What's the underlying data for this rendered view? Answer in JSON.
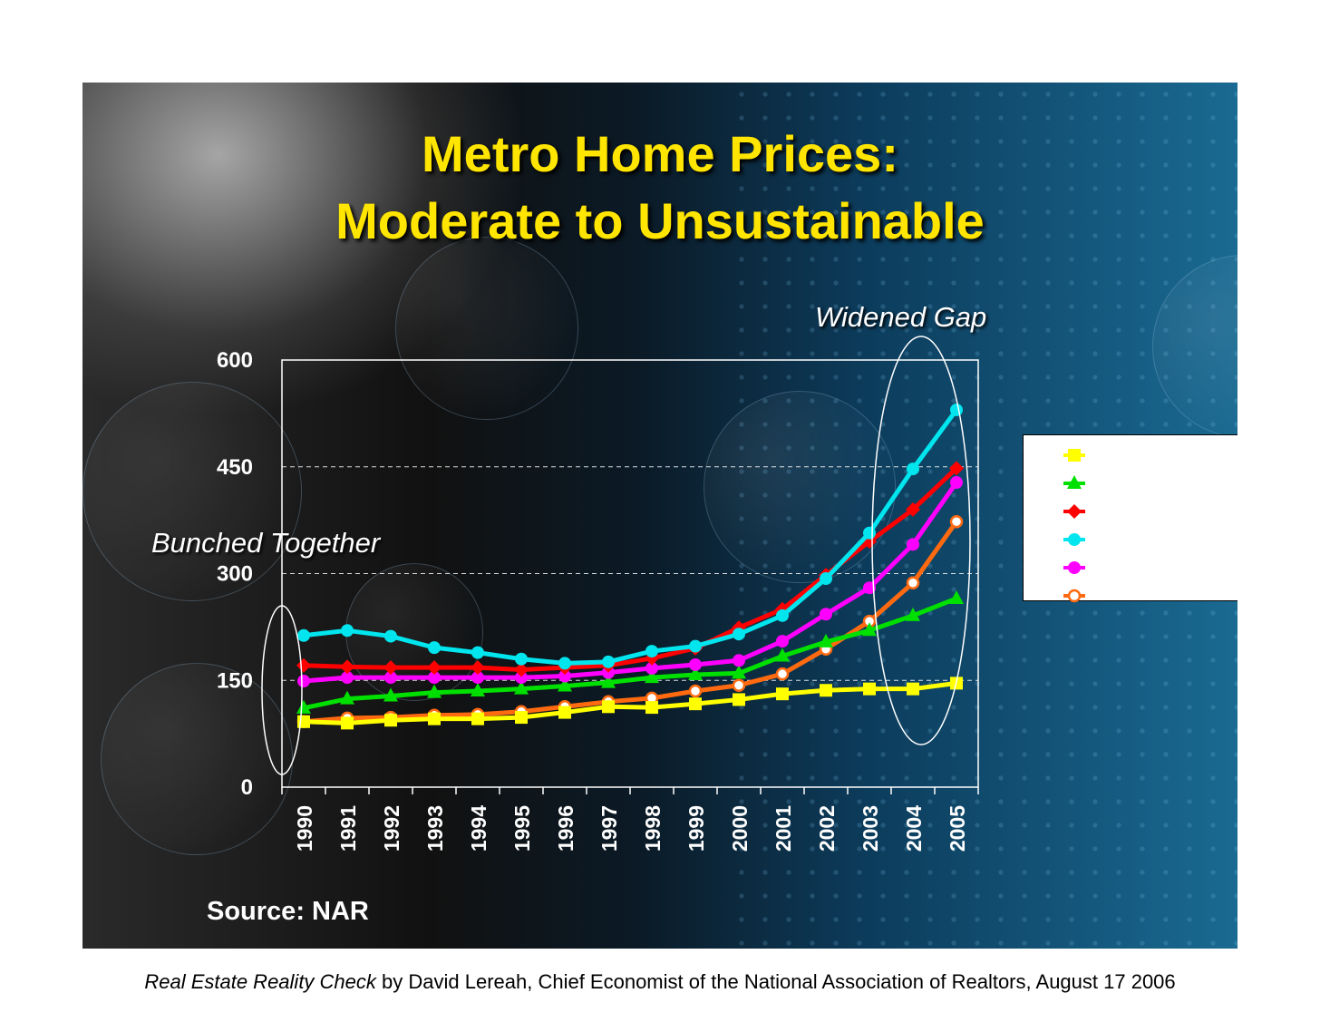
{
  "slide": {
    "title_line1": "Metro Home Prices:",
    "title_line2": "Moderate to Unsustainable",
    "annotation_left": "Bunched Together",
    "annotation_right": "Widened Gap",
    "source": "Source: NAR",
    "colors": {
      "title": "#ffe500",
      "background_left": "#111111",
      "background_right": "#1a6a92"
    }
  },
  "caption": {
    "italic": "Real Estate Reality Check",
    "rest": " by David Lereah, Chief Economist of the National Association of Realtors, August 17 2006"
  },
  "chart_data": {
    "type": "line",
    "title": "Metro Home Prices: Moderate to Unsustainable",
    "xlabel": "",
    "ylabel": "",
    "x": [
      "1990",
      "1991",
      "1992",
      "1993",
      "1994",
      "1995",
      "1996",
      "1997",
      "1998",
      "1999",
      "2000",
      "2001",
      "2002",
      "2003",
      "2004",
      "2005"
    ],
    "yticks": [
      "0",
      "150",
      "300",
      "450",
      "600"
    ],
    "ylim": [
      0,
      600
    ],
    "grid": "horizontal dashed",
    "legend_position": "right",
    "series": [
      {
        "color": "#ffff00",
        "marker": "square",
        "values": [
          92,
          90,
          94,
          96,
          96,
          98,
          105,
          113,
          112,
          117,
          123,
          131,
          136,
          138,
          138,
          146
        ]
      },
      {
        "color": "#00e000",
        "marker": "triangle",
        "values": [
          111,
          124,
          128,
          133,
          135,
          138,
          142,
          147,
          154,
          158,
          160,
          184,
          204,
          220,
          241,
          265
        ]
      },
      {
        "color": "#ff0000",
        "marker": "diamond",
        "values": [
          171,
          169,
          168,
          168,
          168,
          165,
          168,
          171,
          181,
          195,
          224,
          250,
          298,
          345,
          390,
          448
        ]
      },
      {
        "color": "#00e5ee",
        "marker": "circle",
        "values": [
          213,
          220,
          212,
          196,
          189,
          180,
          174,
          176,
          191,
          198,
          215,
          241,
          293,
          357,
          447,
          530
        ]
      },
      {
        "color": "#ff00ff",
        "marker": "circle",
        "values": [
          149,
          154,
          154,
          154,
          154,
          154,
          156,
          161,
          167,
          172,
          178,
          205,
          243,
          280,
          341,
          428
        ]
      },
      {
        "color": "#ff6a10",
        "marker": "circle-open",
        "values": [
          92,
          97,
          98,
          101,
          102,
          106,
          113,
          120,
          125,
          135,
          143,
          159,
          194,
          233,
          287,
          373
        ]
      }
    ]
  }
}
